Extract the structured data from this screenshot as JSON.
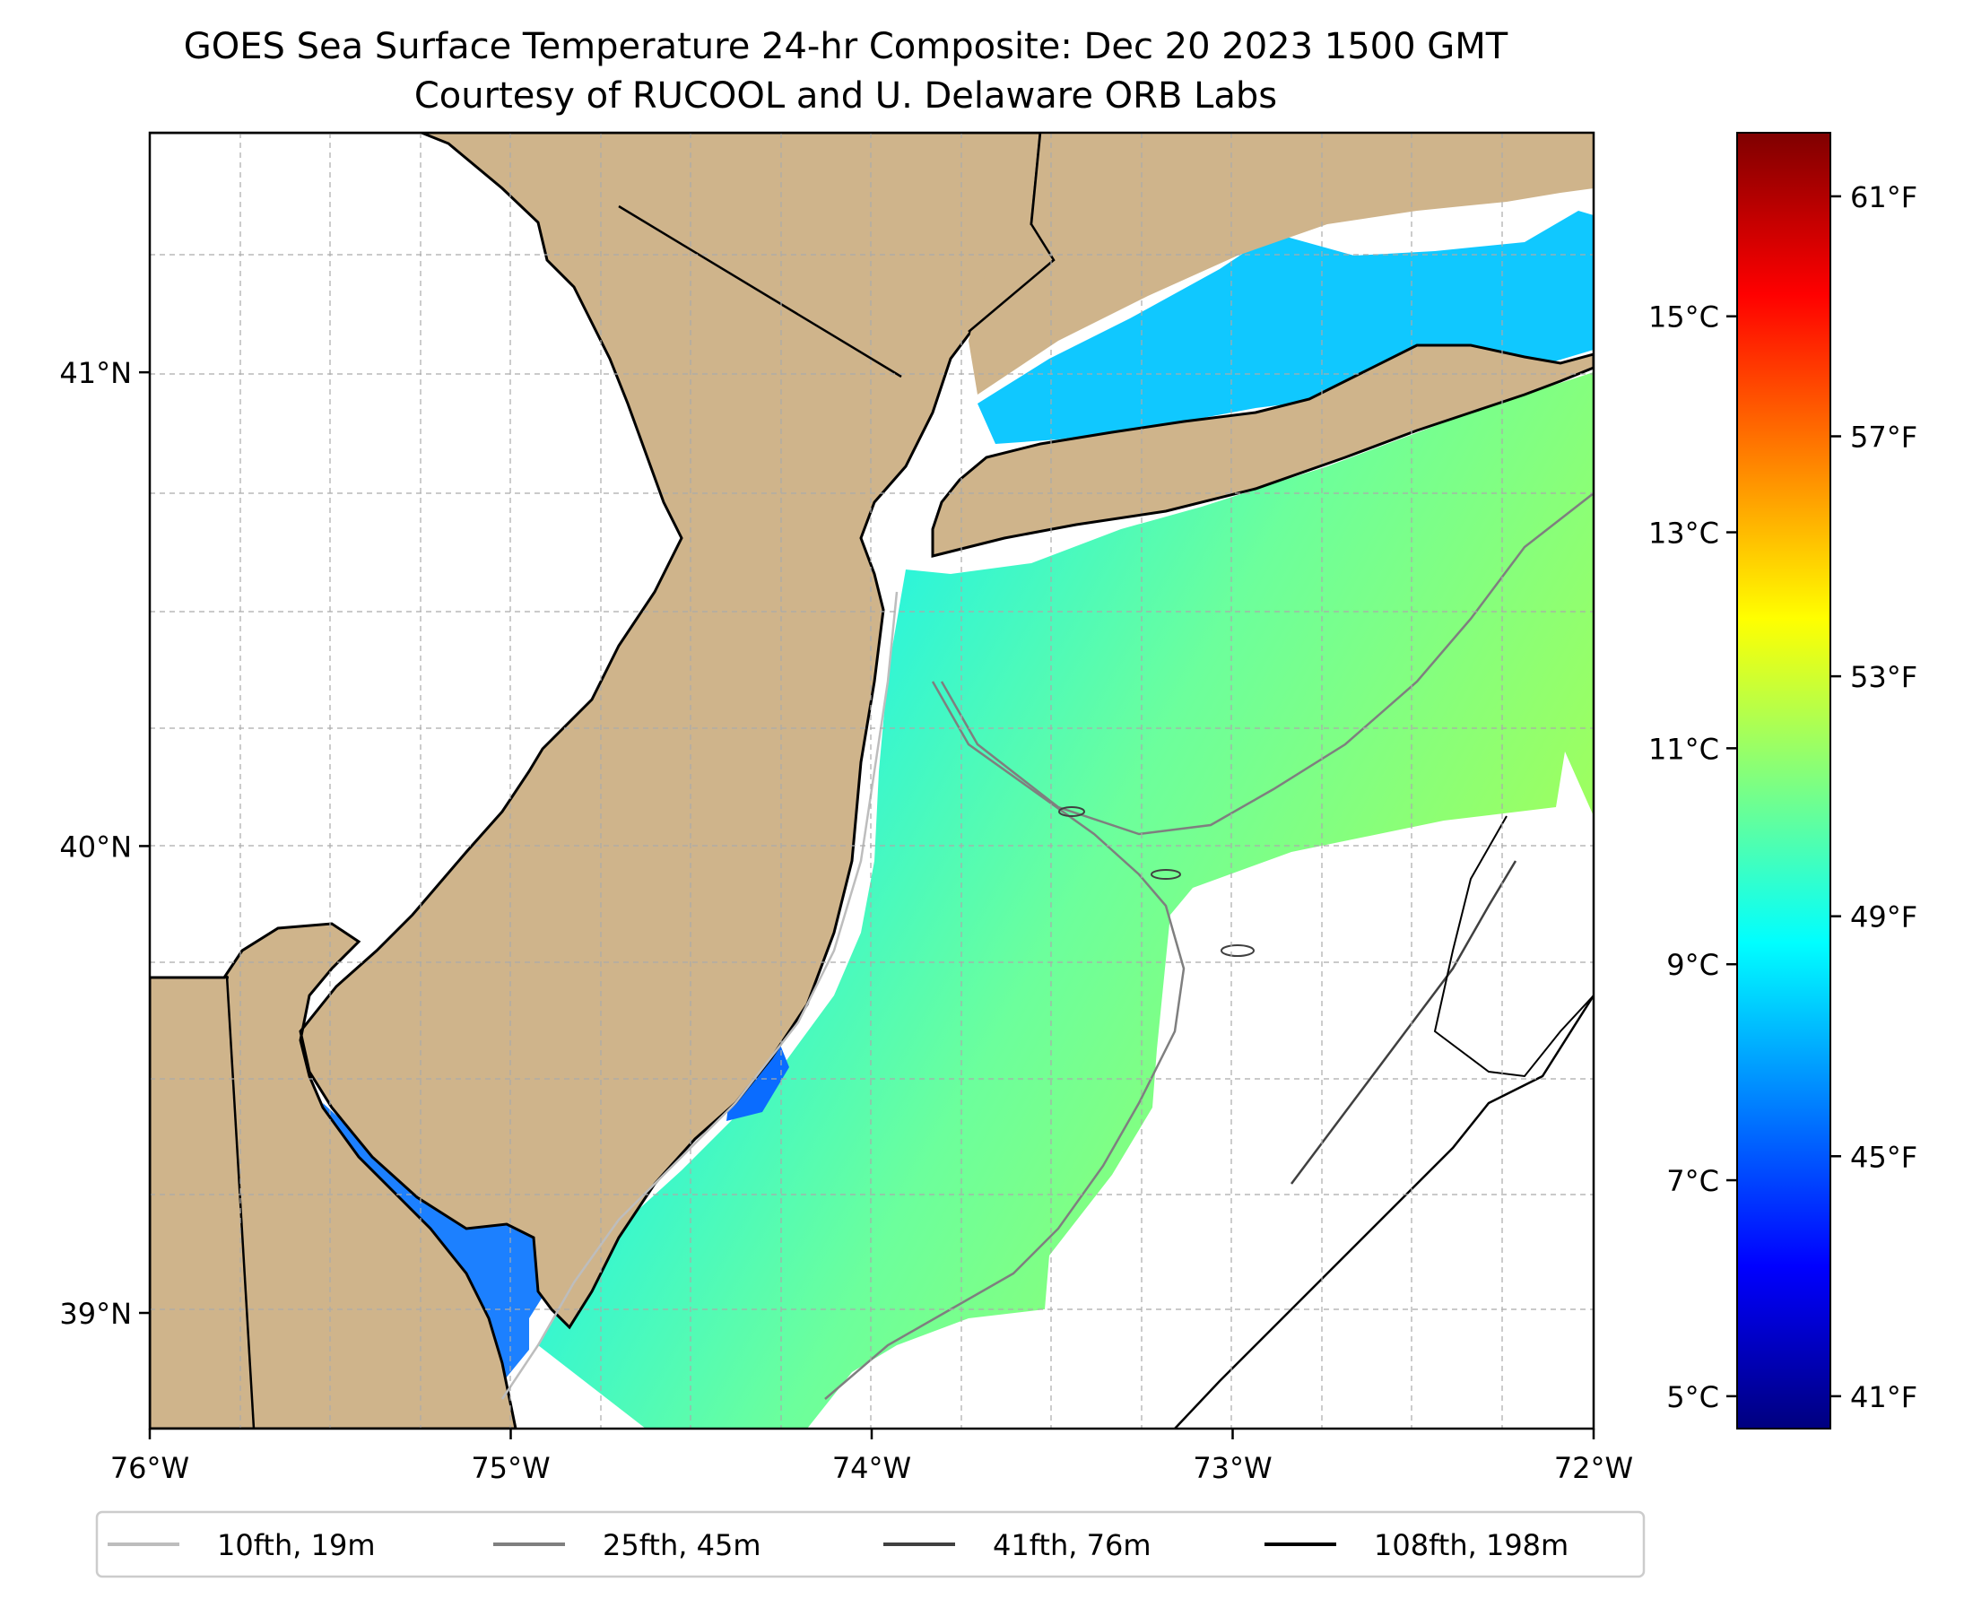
{
  "title": "GOES Sea Surface Temperature 24-hr Composite: Dec 20 2023 1500 GMT",
  "subtitle": "Courtesy of RUCOOL and U. Delaware ORB Labs",
  "map": {
    "extent": {
      "lon_min": -76,
      "lon_max": -72,
      "lat_min": 38.75,
      "lat_max": 41.5
    },
    "colors": {
      "land": "#cfb48b",
      "no_data": "#ffffff",
      "coast": "#000000",
      "grid": "#aaaaaa"
    },
    "lon_ticks": [
      {
        "value": -76,
        "label": "76°W"
      },
      {
        "value": -75,
        "label": "75°W"
      },
      {
        "value": -74,
        "label": "74°W"
      },
      {
        "value": -73,
        "label": "73°W"
      },
      {
        "value": -72,
        "label": "72°W"
      }
    ],
    "lat_ticks": [
      {
        "value": 41,
        "label": "41°N"
      },
      {
        "value": 40,
        "label": "40°N"
      },
      {
        "value": 39,
        "label": "39°N"
      }
    ],
    "grid": true
  },
  "colorbar": {
    "colormap": "jet",
    "range_c": [
      4.7,
      16.7
    ],
    "celsius_ticks": [
      {
        "value": 5,
        "label": "5°C"
      },
      {
        "value": 7,
        "label": "7°C"
      },
      {
        "value": 9,
        "label": "9°C"
      },
      {
        "value": 11,
        "label": "11°C"
      },
      {
        "value": 13,
        "label": "13°C"
      },
      {
        "value": 15,
        "label": "15°C"
      }
    ],
    "fahrenheit_ticks": [
      {
        "value": 41,
        "label": "41°F"
      },
      {
        "value": 45,
        "label": "45°F"
      },
      {
        "value": 49,
        "label": "49°F"
      },
      {
        "value": 53,
        "label": "53°F"
      },
      {
        "value": 57,
        "label": "57°F"
      },
      {
        "value": 61,
        "label": "61°F"
      }
    ]
  },
  "legend": {
    "placement": "bottom",
    "entries": [
      {
        "label": "10fth, 19m",
        "color": "#bdbdbd"
      },
      {
        "label": "25fth, 45m",
        "color": "#7f7f7f"
      },
      {
        "label": "41fth, 76m",
        "color": "#404040"
      },
      {
        "label": "108fth, 198m",
        "color": "#000000"
      }
    ]
  }
}
